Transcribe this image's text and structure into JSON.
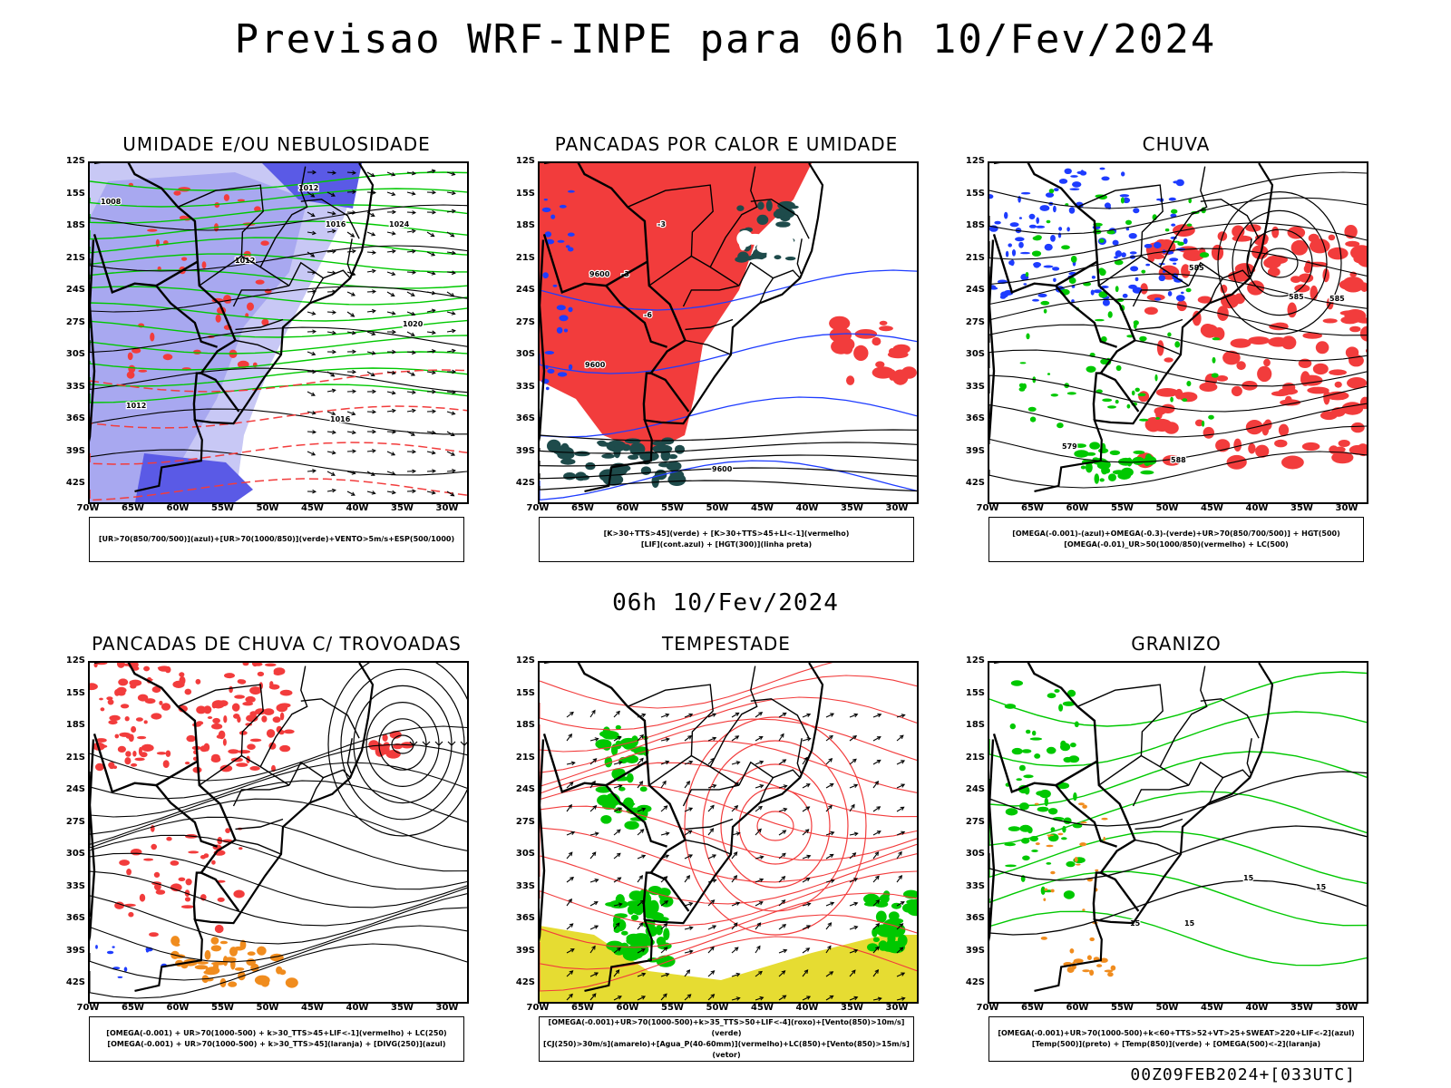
{
  "title": "Previsao WRF-INPE  para 06h 10/Fev/2024",
  "mid_time": "06h 10/Fev/2024",
  "footer": "00Z09FEB2024+[033UTC]",
  "axes": {
    "lat_labels": [
      "12S",
      "15S",
      "18S",
      "21S",
      "24S",
      "27S",
      "30S",
      "33S",
      "36S",
      "39S",
      "42S"
    ],
    "lon_labels": [
      "70W",
      "65W",
      "60W",
      "55W",
      "50W",
      "45W",
      "40W",
      "35W",
      "30W"
    ]
  },
  "colors": {
    "red": "#f23c3c",
    "green": "#00c800",
    "lightgreen": "#22cc22",
    "blue": "#1e3cff",
    "lavender": "#a8a8f0",
    "paleblue": "#c8c8f5",
    "darkteal": "#1e4b4b",
    "yellow": "#e6dc32",
    "orange": "#f08c1e",
    "black": "#000000"
  },
  "panels": [
    {
      "title": "UMIDADE E/OU NEBULOSIDADE",
      "legend": [
        "[UR>70(850/700/500)](azul)+[UR>70(1000/850)](verde)+VENTO>5m/s+ESP(500/1000)"
      ],
      "contour_labels": [
        "1012",
        "1016",
        "1008",
        "1012",
        "1012",
        "1016",
        "1024",
        "1020"
      ]
    },
    {
      "title": "PANCADAS POR CALOR E UMIDADE",
      "legend": [
        "[K>30+TTS>45](verde) + [K>30+TTS>45+LI<-1](vermelho)",
        "[LIF](cont.azul) + [HGT(300)](linha preta)"
      ],
      "contour_labels": [
        "9600",
        "9600",
        "9600",
        "-3",
        "-3",
        "-6"
      ]
    },
    {
      "title": "CHUVA",
      "legend": [
        "[OMEGA(-0.001)-(azul)+OMEGA(-0.3)-(verde)+UR>70(850/700/500)] + HGT(500)",
        "[OMEGA(-0.01)_UR>50(1000/850)(vermelho) + LC(500)"
      ],
      "contour_labels": [
        "585",
        "585",
        "579",
        "585",
        "588"
      ]
    },
    {
      "title": "PANCADAS DE CHUVA C/ TROVOADAS",
      "legend": [
        "[OMEGA(-0.001) + UR>70(1000-500) + k>30_TTS>45+LIF<-1](vermelho) + LC(250)",
        "[OMEGA(-0.001) + UR>70(1000-500) + k>30_TTS>45](laranja) + [DIVG(250)](azul)"
      ],
      "contour_labels": []
    },
    {
      "title": "TEMPESTADE",
      "legend": [
        "[OMEGA(-0.001)+UR>70(1000-500)+k>35_TTS>50+LIF<-4](roxo)+[Vento(850)>10m/s](verde)",
        "[CJ(250)>30m/s](amarelo)+[Agua_P(40-60mm)](vermelho)+LC(850)+[Vento(850)>15m/s](vetor)"
      ],
      "contour_labels": []
    },
    {
      "title": "GRANIZO",
      "legend": [
        "[OMEGA(-0.001)+UR>70(1000-500)+k<60+TTS>52+VT>25+SWEAT>220+LIF<-2](azul)",
        "[Temp(500)](preto) + [Temp(850)](verde) + [OMEGA(500)<-2](laranja)"
      ],
      "contour_labels": [
        "15",
        "15",
        "15",
        "15"
      ]
    }
  ]
}
